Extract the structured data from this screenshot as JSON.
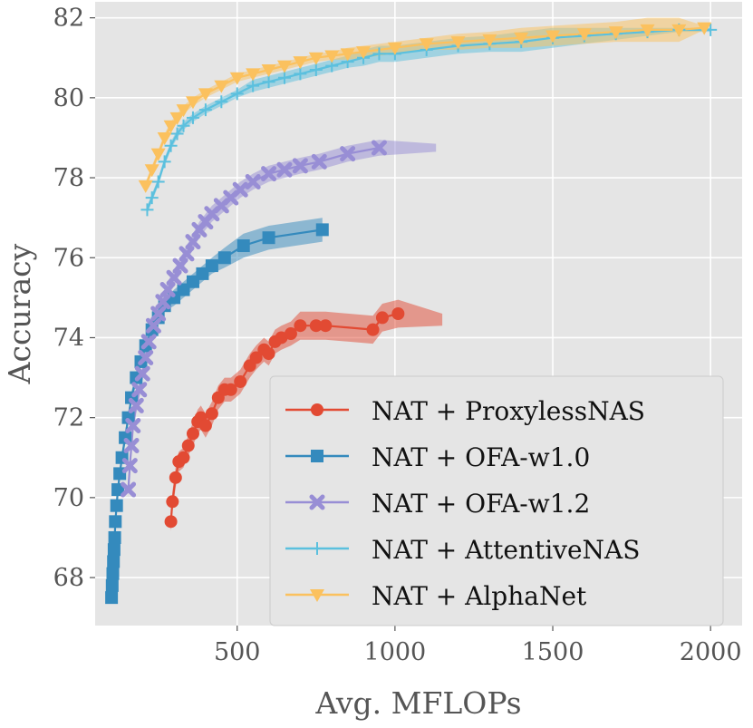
{
  "chart_data": {
    "type": "line",
    "title": "",
    "xlabel": "Avg. MFLOPs",
    "ylabel": "Accuracy",
    "xlim": [
      50,
      2100
    ],
    "ylim": [
      66.8,
      82.4
    ],
    "xticks": [
      500,
      1000,
      1500,
      2000
    ],
    "yticks": [
      68,
      70,
      72,
      74,
      76,
      78,
      80,
      82
    ],
    "grid": true,
    "legend_position": "lower-right",
    "series": [
      {
        "name": "NAT + ProxylessNAS",
        "color": "#e24a33",
        "marker": "circle",
        "x": [
          290,
          295,
          305,
          315,
          330,
          345,
          360,
          375,
          385,
          400,
          420,
          440,
          460,
          480,
          510,
          540,
          560,
          585,
          600,
          620,
          640,
          670,
          700,
          750,
          780,
          930,
          960,
          1010
        ],
        "y": [
          69.4,
          69.9,
          70.5,
          70.9,
          71.0,
          71.3,
          71.6,
          71.9,
          72.0,
          71.8,
          72.1,
          72.5,
          72.7,
          72.7,
          72.9,
          73.3,
          73.5,
          73.7,
          73.6,
          73.9,
          74.0,
          74.1,
          74.3,
          74.3,
          74.3,
          74.2,
          74.5,
          74.6
        ],
        "band": [
          0.25,
          0.25,
          0.25,
          0.25,
          0.25,
          0.25,
          0.3,
          0.3,
          0.3,
          0.3,
          0.3,
          0.3,
          0.3,
          0.3,
          0.3,
          0.3,
          0.3,
          0.3,
          0.3,
          0.3,
          0.3,
          0.3,
          0.35,
          0.35,
          0.35,
          0.35,
          0.35,
          0.35
        ],
        "band_tail": {
          "x": 1150,
          "upper": 74.6,
          "lower": 74.3
        }
      },
      {
        "name": "NAT + OFA-w1.0",
        "color": "#348abd",
        "marker": "square",
        "x": [
          102,
          104,
          106,
          108,
          110,
          112,
          114,
          118,
          122,
          128,
          135,
          145,
          155,
          165,
          180,
          195,
          210,
          230,
          250,
          270,
          300,
          330,
          360,
          390,
          420,
          460,
          520,
          600,
          770
        ],
        "y": [
          67.5,
          67.8,
          68.1,
          68.4,
          68.7,
          69.0,
          69.4,
          69.8,
          70.2,
          70.6,
          71.0,
          71.5,
          72.0,
          72.5,
          73.0,
          73.4,
          73.8,
          74.2,
          74.5,
          74.8,
          75.0,
          75.2,
          75.4,
          75.6,
          75.8,
          76.0,
          76.3,
          76.5,
          76.7
        ],
        "band": [
          0.1,
          0.1,
          0.1,
          0.1,
          0.1,
          0.1,
          0.1,
          0.1,
          0.1,
          0.15,
          0.15,
          0.15,
          0.15,
          0.15,
          0.15,
          0.15,
          0.15,
          0.15,
          0.15,
          0.15,
          0.2,
          0.2,
          0.2,
          0.2,
          0.2,
          0.25,
          0.3,
          0.3,
          0.3
        ]
      },
      {
        "name": "NAT + OFA-w1.2",
        "color": "#988ed5",
        "marker": "x",
        "x": [
          155,
          160,
          165,
          170,
          180,
          190,
          200,
          210,
          220,
          235,
          250,
          265,
          280,
          300,
          320,
          340,
          360,
          380,
          400,
          420,
          450,
          480,
          510,
          550,
          600,
          650,
          700,
          760,
          850,
          950
        ],
        "y": [
          70.2,
          70.8,
          71.3,
          71.8,
          72.3,
          72.7,
          73.1,
          73.5,
          73.9,
          74.3,
          74.6,
          74.9,
          75.2,
          75.5,
          75.8,
          76.1,
          76.4,
          76.7,
          76.9,
          77.1,
          77.3,
          77.5,
          77.7,
          77.9,
          78.1,
          78.2,
          78.3,
          78.4,
          78.6,
          78.75
        ],
        "band": [
          0.2,
          0.2,
          0.2,
          0.2,
          0.2,
          0.2,
          0.2,
          0.2,
          0.2,
          0.2,
          0.2,
          0.2,
          0.2,
          0.2,
          0.2,
          0.2,
          0.2,
          0.2,
          0.2,
          0.2,
          0.2,
          0.2,
          0.2,
          0.2,
          0.2,
          0.2,
          0.2,
          0.2,
          0.2,
          0.2
        ],
        "band_tail": {
          "x": 1130,
          "upper": 78.85,
          "lower": 78.65
        }
      },
      {
        "name": "NAT + AttentiveNAS",
        "color": "#5bc0de",
        "marker": "plus",
        "x": [
          215,
          230,
          250,
          270,
          290,
          310,
          330,
          360,
          400,
          450,
          500,
          550,
          600,
          650,
          700,
          750,
          800,
          850,
          900,
          950,
          1000,
          1100,
          1200,
          1300,
          1400,
          1500,
          1600,
          1700,
          1800,
          1900,
          2000
        ],
        "y": [
          77.2,
          77.5,
          77.9,
          78.4,
          78.8,
          79.1,
          79.3,
          79.5,
          79.7,
          79.9,
          80.1,
          80.3,
          80.4,
          80.5,
          80.6,
          80.7,
          80.8,
          80.9,
          81.0,
          81.1,
          81.1,
          81.2,
          81.3,
          81.35,
          81.4,
          81.5,
          81.55,
          81.6,
          81.65,
          81.7,
          81.7
        ],
        "band": [
          0.1,
          0.1,
          0.1,
          0.1,
          0.1,
          0.1,
          0.1,
          0.1,
          0.1,
          0.1,
          0.1,
          0.15,
          0.15,
          0.15,
          0.15,
          0.15,
          0.15,
          0.15,
          0.2,
          0.2,
          0.2,
          0.2,
          0.2,
          0.2,
          0.25,
          0.25,
          0.2,
          0.15,
          0.1,
          0.05,
          0.05
        ]
      },
      {
        "name": "NAT + AlphaNet",
        "color": "#fbc15e",
        "marker": "triangle-down",
        "x": [
          210,
          230,
          250,
          270,
          290,
          310,
          330,
          360,
          400,
          450,
          500,
          550,
          600,
          650,
          700,
          750,
          800,
          850,
          900,
          1000,
          1100,
          1200,
          1300,
          1400,
          1500,
          1600,
          1700,
          1800,
          1900,
          1980
        ],
        "y": [
          77.8,
          78.2,
          78.6,
          79.0,
          79.3,
          79.5,
          79.7,
          79.9,
          80.1,
          80.3,
          80.5,
          80.6,
          80.7,
          80.8,
          80.9,
          81.0,
          81.05,
          81.1,
          81.15,
          81.25,
          81.35,
          81.4,
          81.45,
          81.5,
          81.55,
          81.6,
          81.65,
          81.7,
          81.7,
          81.75
        ],
        "band": [
          0.1,
          0.1,
          0.1,
          0.1,
          0.1,
          0.1,
          0.1,
          0.1,
          0.1,
          0.1,
          0.1,
          0.1,
          0.1,
          0.1,
          0.1,
          0.1,
          0.1,
          0.15,
          0.15,
          0.15,
          0.15,
          0.2,
          0.2,
          0.25,
          0.25,
          0.25,
          0.25,
          0.3,
          0.3,
          0.05
        ]
      }
    ]
  }
}
